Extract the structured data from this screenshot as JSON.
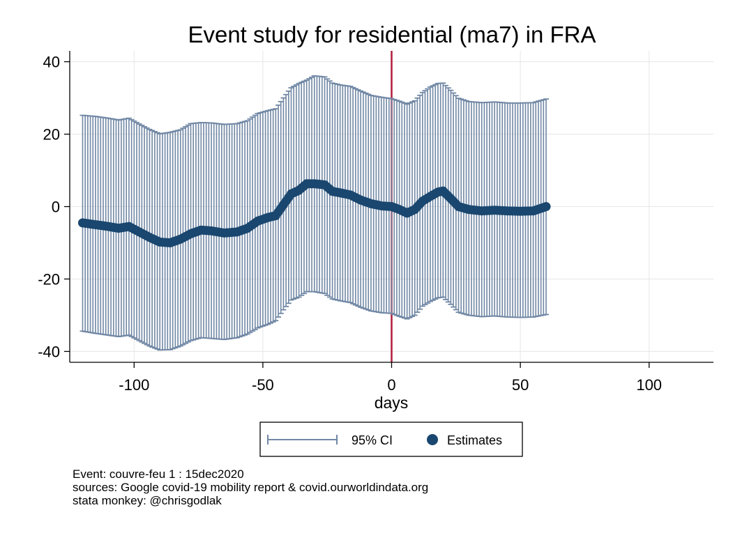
{
  "chart_data": {
    "type": "scatter",
    "title": "Event study for residential (ma7) in FRA",
    "xlabel": "days",
    "ylabel": "",
    "xlim": [
      -125,
      125
    ],
    "ylim": [
      -43,
      43
    ],
    "xticks": [
      -100,
      -50,
      0,
      50,
      100
    ],
    "yticks": [
      40,
      20,
      0,
      -20,
      -40
    ],
    "xtick_labels": [
      "-100",
      "-50",
      "0",
      "50",
      "100"
    ],
    "ytick_labels": [
      "40",
      "20",
      "0",
      "-20",
      "-40"
    ],
    "grid": true,
    "event_line_x": 0,
    "legend_position": "bottom",
    "legend": [
      "95% CI",
      "Estimates"
    ],
    "series": [
      {
        "name": "Estimates",
        "x": [
          -120,
          -115,
          -110,
          -106,
          -102,
          -98,
          -94,
          -90,
          -86,
          -82,
          -78,
          -74,
          -70,
          -65,
          -60,
          -56,
          -52,
          -48,
          -45,
          -42,
          -39,
          -36,
          -33,
          -30,
          -26,
          -23,
          -20,
          -16,
          -12,
          -8,
          -4,
          0,
          3,
          6,
          9,
          12,
          15,
          18,
          20,
          23,
          26,
          30,
          35,
          40,
          45,
          50,
          55,
          60
        ],
        "y": [
          -4.5,
          -5,
          -5.5,
          -6,
          -5.5,
          -7,
          -8.5,
          -9.8,
          -10,
          -9,
          -7.5,
          -6.5,
          -6.7,
          -7.3,
          -7,
          -6,
          -4,
          -3,
          -2.5,
          0.5,
          3.5,
          4.5,
          6.3,
          6.3,
          6,
          4.2,
          3.8,
          3.2,
          1.8,
          0.8,
          0.2,
          0,
          -0.8,
          -1.8,
          -0.8,
          1.5,
          2.8,
          4,
          4.3,
          2.2,
          0,
          -0.8,
          -1.2,
          -1,
          -1.2,
          -1.3,
          -1.2,
          0
        ],
        "ci_low": [
          -34.4,
          -35,
          -35.5,
          -35.9,
          -35.5,
          -37,
          -38.5,
          -39.6,
          -39.5,
          -38.5,
          -37,
          -36.2,
          -36.4,
          -36.7,
          -36.2,
          -35.2,
          -33.5,
          -32.5,
          -31.5,
          -28.5,
          -25.8,
          -25,
          -23.5,
          -23.5,
          -24,
          -25.5,
          -26,
          -26.5,
          -27.8,
          -28.8,
          -29.3,
          -29.5,
          -30.3,
          -31,
          -30,
          -27.5,
          -26.2,
          -25.2,
          -25,
          -27,
          -29.2,
          -30,
          -30.4,
          -30.2,
          -30.5,
          -30.6,
          -30.5,
          -29.8
        ],
        "ci_high": [
          25.2,
          24.9,
          24.4,
          23.9,
          24.4,
          22.8,
          21.3,
          20.1,
          20.5,
          21.2,
          22.9,
          23.2,
          23.1,
          22.7,
          22.9,
          23.7,
          25.7,
          26.5,
          27,
          30,
          32.8,
          34,
          34.9,
          36.1,
          35.8,
          34.1,
          33.6,
          33.2,
          31.9,
          30.7,
          30.2,
          29.8,
          29.1,
          28.3,
          29.2,
          31.5,
          33,
          34,
          34.1,
          32.1,
          29.9,
          29,
          28.7,
          28.9,
          28.6,
          28.6,
          28.7,
          29.7
        ]
      }
    ]
  },
  "notes": {
    "event": "Event: couvre-feu 1 : 15dec2020",
    "sources": "sources: Google covid-19 mobility report & covid.ourworldindata.org",
    "credit": "stata monkey: @chrisgodlak"
  },
  "colors": {
    "estimates": "#1a476f",
    "ci": "#7087a4",
    "event_line": "#b01c3c",
    "grid": "#e6e6e6"
  }
}
